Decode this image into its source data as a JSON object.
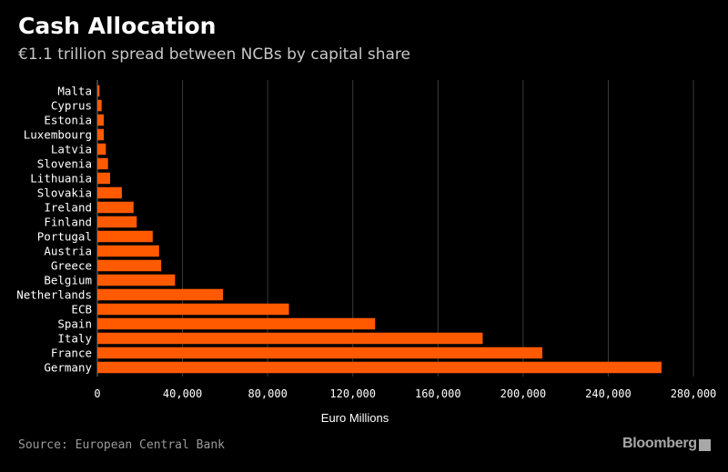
{
  "chart_data": {
    "type": "bar",
    "orientation": "horizontal",
    "title": "Cash Allocation",
    "subtitle": "€1.1 trillion spread between NCBs by capital share",
    "xlabel": "Euro Millions",
    "ylabel": "",
    "xlim": [
      0,
      280000
    ],
    "xticks": [
      0,
      40000,
      80000,
      120000,
      160000,
      200000,
      240000,
      280000
    ],
    "xtick_labels": [
      "0",
      "40,000",
      "80,000",
      "120,000",
      "160,000",
      "200,000",
      "240,000",
      "280,000"
    ],
    "categories": [
      "Malta",
      "Cyprus",
      "Estonia",
      "Luxembourg",
      "Latvia",
      "Slovenia",
      "Lithuania",
      "Slovakia",
      "Ireland",
      "Finland",
      "Portugal",
      "Austria",
      "Greece",
      "Belgium",
      "Netherlands",
      "ECB",
      "Spain",
      "Italy",
      "France",
      "Germany"
    ],
    "values": [
      1000,
      2000,
      3000,
      3000,
      4000,
      5000,
      6000,
      11500,
      17000,
      18500,
      26000,
      29000,
      30000,
      36500,
      59000,
      90000,
      130500,
      181000,
      209000,
      265000
    ],
    "color": "#ff5a00",
    "grid": true
  },
  "footer": {
    "source": "Source: European Central Bank",
    "brand": "Bloomberg"
  },
  "colors": {
    "background": "#000000",
    "bar": "#ff5a00",
    "grid": "#3a3a3a"
  }
}
